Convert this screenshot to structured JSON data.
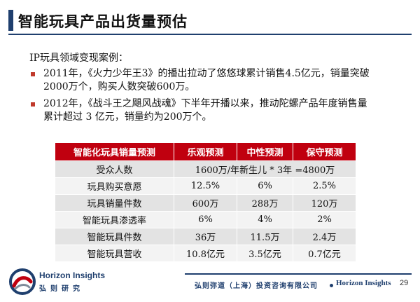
{
  "title": "智能玩具产品出货量预估",
  "intro": "IP玩具领域变现案例：",
  "bullets": [
    {
      "line1": "2011年，《火力少年王3》的播出拉动了悠悠球累计销售4.5亿元，销量突破",
      "line2": "2000万个，购买人数突破600万。"
    },
    {
      "line1": "2012年，《战斗王之飓风战魂》下半年开播以来，推动陀螺产品年度销售量",
      "line2": "累计超过 3 亿元，销量约为200万个。"
    }
  ],
  "table": {
    "headers": [
      "智能化玩具销量预测",
      "乐观预测",
      "中性预测",
      "保守预测"
    ],
    "audience": {
      "label": "受众人数",
      "value": "1600万/年新生儿 * 3年 =4800万"
    },
    "rows": [
      {
        "label": "玩具购买意愿",
        "a": "12.5%",
        "b": "6%",
        "c": "2.5%"
      },
      {
        "label": "玩具销量件数",
        "a": "600万",
        "b": "288万",
        "c": "120万"
      },
      {
        "label": "智能玩具渗透率",
        "a": "6%",
        "b": "4%",
        "c": "2%"
      },
      {
        "label": "智能玩具件数",
        "a": "36万",
        "b": "11.5万",
        "c": "2.4万"
      },
      {
        "label": "智能玩具营收",
        "a": "10.8亿元",
        "b": "3.5亿元",
        "c": "0.7亿元"
      }
    ]
  },
  "footer": {
    "logo_en": "Horizon Insights",
    "logo_cn": "弘则研究",
    "company": "弘则弥道（上海）投资咨询有限公司",
    "brand": "Horizon Insights",
    "page": "29"
  },
  "colors": {
    "accent_red": "#c0000f",
    "navy": "#1f3f6e",
    "bullet_red": "#c0392b"
  },
  "icons": {
    "logo": "horizon-swirl-logo-icon"
  }
}
